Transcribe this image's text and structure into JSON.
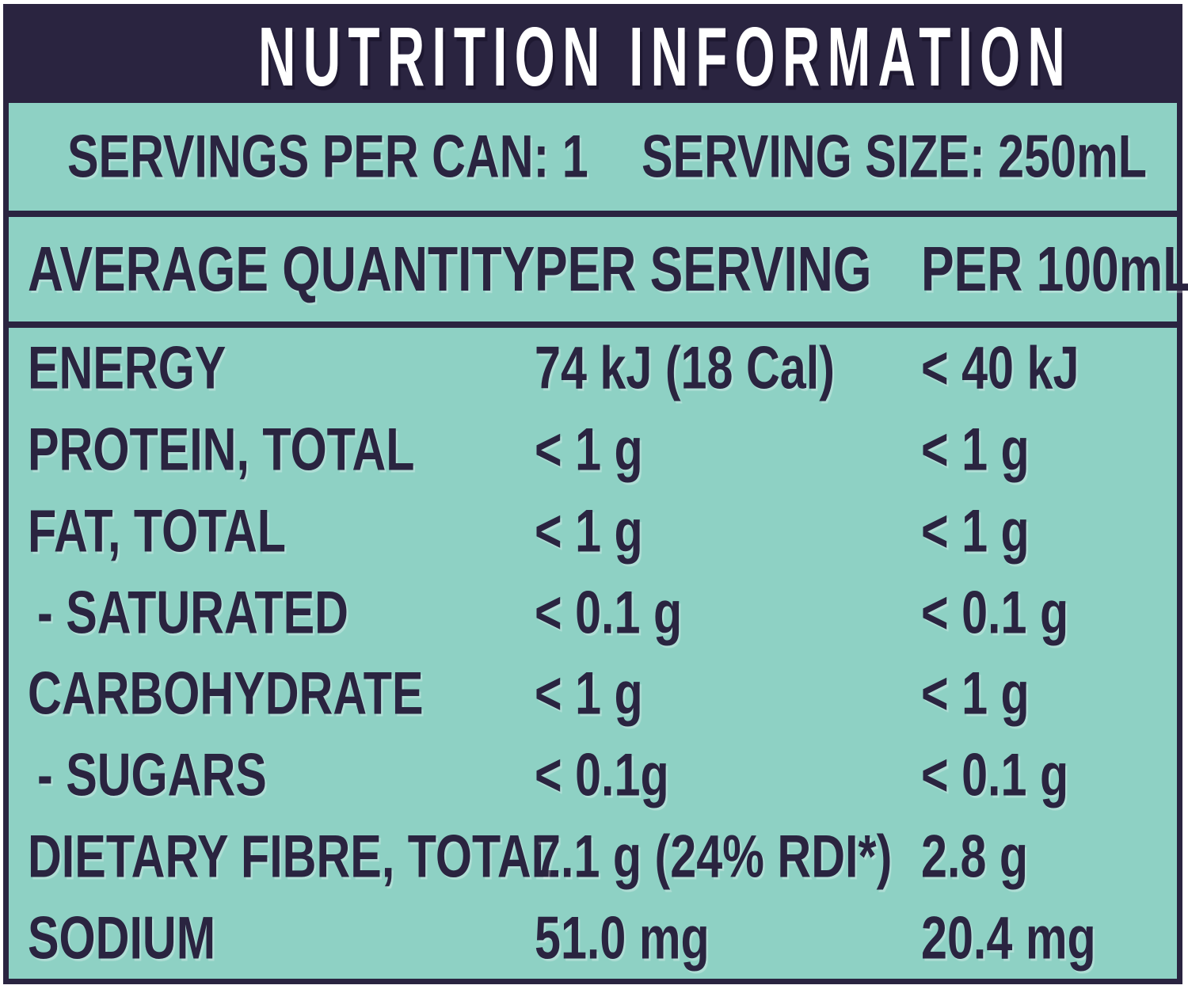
{
  "colors": {
    "navy": "#2a2440",
    "teal": "#8ed1c4",
    "title_text": "#ffffff"
  },
  "header": {
    "title": "NUTRITION INFORMATION"
  },
  "serving_info": {
    "servings_per_can": "SERVINGS PER CAN: 1",
    "serving_size": "SERVING SIZE: 250mL"
  },
  "columns": {
    "quantity": "AVERAGE QUANTITY",
    "per_serving": "PER SERVING",
    "per_100ml": "PER 100mL"
  },
  "rows": [
    {
      "label": "ENERGY",
      "per_serving": "74 kJ (18 Cal)",
      "per_100ml": "< 40 kJ"
    },
    {
      "label": "PROTEIN, TOTAL",
      "per_serving": "< 1 g",
      "per_100ml": "< 1 g"
    },
    {
      "label": "FAT, TOTAL",
      "per_serving": "< 1 g",
      "per_100ml": "< 1 g"
    },
    {
      "label": "- SATURATED",
      "per_serving": "< 0.1 g",
      "per_100ml": "< 0.1 g"
    },
    {
      "label": "CARBOHYDRATE",
      "per_serving": "< 1 g",
      "per_100ml": "< 1 g"
    },
    {
      "label": "- SUGARS",
      "per_serving": "< 0.1g",
      "per_100ml": "< 0.1 g"
    },
    {
      "label": "DIETARY FIBRE, TOTAL",
      "per_serving": "7.1 g (24% RDI*)",
      "per_100ml": "2.8 g"
    },
    {
      "label": "SODIUM",
      "per_serving": "51.0 mg",
      "per_100ml": "20.4 mg"
    }
  ]
}
